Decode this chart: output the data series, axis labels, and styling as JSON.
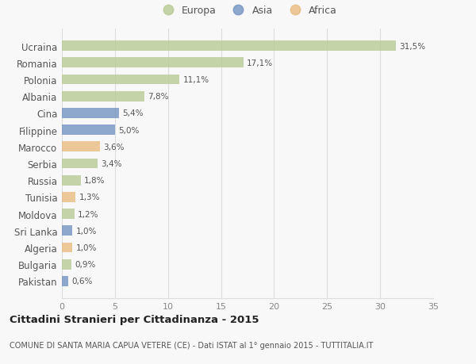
{
  "countries": [
    "Ucraina",
    "Romania",
    "Polonia",
    "Albania",
    "Cina",
    "Filippine",
    "Marocco",
    "Serbia",
    "Russia",
    "Tunisia",
    "Moldova",
    "Sri Lanka",
    "Algeria",
    "Bulgaria",
    "Pakistan"
  ],
  "values": [
    31.5,
    17.1,
    11.1,
    7.8,
    5.4,
    5.0,
    3.6,
    3.4,
    1.8,
    1.3,
    1.2,
    1.0,
    1.0,
    0.9,
    0.6
  ],
  "labels": [
    "31,5%",
    "17,1%",
    "11,1%",
    "7,8%",
    "5,4%",
    "5,0%",
    "3,6%",
    "3,4%",
    "1,8%",
    "1,3%",
    "1,2%",
    "1,0%",
    "1,0%",
    "0,9%",
    "0,6%"
  ],
  "continents": [
    "Europa",
    "Europa",
    "Europa",
    "Europa",
    "Asia",
    "Asia",
    "Africa",
    "Europa",
    "Europa",
    "Africa",
    "Europa",
    "Asia",
    "Africa",
    "Europa",
    "Asia"
  ],
  "colors": {
    "Europa": "#b5c98e",
    "Asia": "#6b8cbf",
    "Africa": "#e8b87a"
  },
  "xlim": [
    0,
    35
  ],
  "xticks": [
    0,
    5,
    10,
    15,
    20,
    25,
    30,
    35
  ],
  "title": "Cittadini Stranieri per Cittadinanza - 2015",
  "subtitle": "COMUNE DI SANTA MARIA CAPUA VETERE (CE) - Dati ISTAT al 1° gennaio 2015 - TUTTITALIA.IT",
  "bg_color": "#f8f8f8",
  "grid_color": "#dddddd",
  "bar_alpha": 0.75
}
